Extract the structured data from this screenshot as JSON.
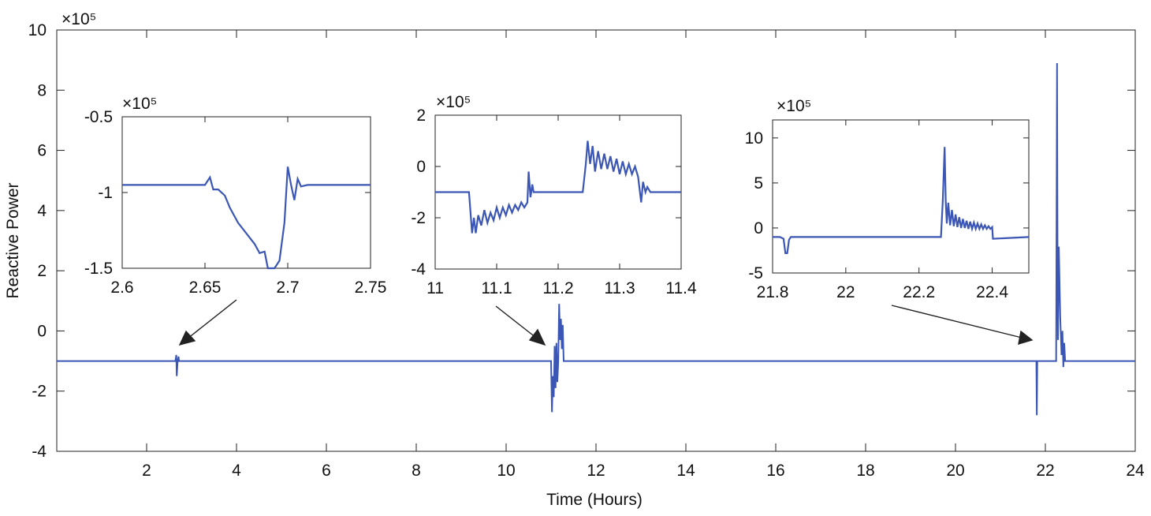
{
  "colors": {
    "line": "#3b56b4",
    "axis": "#222222",
    "arrow": "#222222",
    "background": "#ffffff"
  },
  "chart_data": [
    {
      "id": "main",
      "type": "line",
      "title": "",
      "xlabel": "Time (Hours)",
      "ylabel": "Reactive Power",
      "exponent": "×10⁵",
      "xlim": [
        0,
        24
      ],
      "ylim": [
        -4,
        10
      ],
      "xticks": [
        2,
        4,
        6,
        8,
        10,
        12,
        14,
        16,
        18,
        20,
        22,
        24
      ],
      "yticks": [
        -4,
        -2,
        0,
        2,
        4,
        6,
        8,
        10
      ],
      "series": [
        {
          "name": "Reactive power",
          "x": [
            0,
            2.64,
            2.66,
            2.67,
            2.69,
            2.71,
            2.72,
            2.74,
            10.97,
            11.0,
            11.02,
            11.04,
            11.06,
            11.08,
            11.1,
            11.12,
            11.14,
            11.16,
            11.18,
            11.2,
            11.22,
            11.24,
            11.26,
            11.28,
            11.3,
            11.32,
            11.34,
            11.37,
            21.78,
            21.8,
            21.81,
            21.82,
            21.84,
            21.86,
            22.2,
            22.24,
            22.26,
            22.27,
            22.28,
            22.3,
            22.33,
            22.36,
            22.38,
            22.4,
            22.42,
            22.44,
            22.46,
            24
          ],
          "y": [
            -1.0,
            -1.0,
            -0.8,
            -1.5,
            -1.0,
            -0.85,
            -1.0,
            -1.0,
            -1.0,
            -1.0,
            -2.7,
            -1.5,
            -2.2,
            -0.5,
            -1.9,
            -0.4,
            -1.7,
            -1.0,
            0.9,
            -0.3,
            0.4,
            -0.6,
            0.2,
            -1.0,
            -1.0,
            -1.0,
            -1.0,
            -1.0,
            -1.0,
            -1.0,
            -2.8,
            -1.0,
            -1.0,
            -1.0,
            -1.0,
            -1.0,
            8.9,
            3.0,
            -0.3,
            2.8,
            0.5,
            -0.8,
            0.0,
            -1.2,
            -0.4,
            -1.0,
            -1.0,
            -1.0
          ]
        }
      ]
    },
    {
      "id": "inset-1",
      "type": "line",
      "exponent": "×10⁵",
      "xlim": [
        2.6,
        2.75
      ],
      "ylim": [
        -1.5,
        -0.5
      ],
      "xticks": [
        2.6,
        2.65,
        2.7,
        2.75
      ],
      "yticks": [
        -1.5,
        -1,
        -0.5
      ],
      "series": [
        {
          "name": "Reactive power",
          "x": [
            2.6,
            2.65,
            2.653,
            2.655,
            2.658,
            2.662,
            2.665,
            2.67,
            2.675,
            2.68,
            2.683,
            2.686,
            2.688,
            2.692,
            2.695,
            2.698,
            2.7,
            2.702,
            2.704,
            2.706,
            2.708,
            2.712,
            2.75
          ],
          "y": [
            -0.95,
            -0.95,
            -0.9,
            -0.98,
            -0.98,
            -1.02,
            -1.1,
            -1.2,
            -1.27,
            -1.34,
            -1.4,
            -1.39,
            -1.5,
            -1.5,
            -1.45,
            -1.2,
            -0.83,
            -0.95,
            -1.05,
            -0.91,
            -0.96,
            -0.95,
            -0.95
          ]
        }
      ]
    },
    {
      "id": "inset-2",
      "type": "line",
      "exponent": "×10⁵",
      "xlim": [
        11,
        11.4
      ],
      "ylim": [
        -4,
        2
      ],
      "xticks": [
        11,
        11.1,
        11.2,
        11.3,
        11.4
      ],
      "yticks": [
        -4,
        -2,
        0,
        2
      ],
      "series": [
        {
          "name": "Reactive power",
          "x": [
            11.0,
            11.055,
            11.06,
            11.063,
            11.066,
            11.07,
            11.075,
            11.08,
            11.085,
            11.09,
            11.095,
            11.1,
            11.105,
            11.11,
            11.115,
            11.12,
            11.125,
            11.13,
            11.135,
            11.14,
            11.145,
            11.15,
            11.152,
            11.155,
            11.158,
            11.16,
            11.24,
            11.245,
            11.248,
            11.252,
            11.256,
            11.26,
            11.265,
            11.27,
            11.275,
            11.28,
            11.285,
            11.29,
            11.295,
            11.3,
            11.305,
            11.31,
            11.315,
            11.32,
            11.325,
            11.33,
            11.335,
            11.338,
            11.342,
            11.345,
            11.35,
            11.4
          ],
          "y": [
            -1.0,
            -1.0,
            -2.6,
            -2.0,
            -2.6,
            -1.9,
            -2.3,
            -1.7,
            -2.2,
            -1.8,
            -2.1,
            -1.6,
            -2.0,
            -1.6,
            -1.9,
            -1.5,
            -1.8,
            -1.5,
            -1.7,
            -1.4,
            -1.6,
            -1.4,
            -0.2,
            -1.2,
            -0.7,
            -1.0,
            -1.0,
            0.1,
            1.0,
            0.1,
            0.8,
            -0.2,
            0.6,
            -0.1,
            0.5,
            -0.1,
            0.4,
            -0.2,
            0.3,
            -0.3,
            0.2,
            -0.3,
            0.1,
            -0.3,
            0.0,
            -0.4,
            -1.4,
            -0.6,
            -1.0,
            -0.8,
            -1.0,
            -1.0
          ]
        }
      ]
    },
    {
      "id": "inset-3",
      "type": "line",
      "exponent": "×10⁵",
      "xlim": [
        21.8,
        22.5
      ],
      "ylim": [
        -5,
        12
      ],
      "xticks": [
        21.8,
        22,
        22.2,
        22.4
      ],
      "yticks": [
        -5,
        0,
        5,
        10
      ],
      "series": [
        {
          "name": "Reactive power",
          "x": [
            21.8,
            21.82,
            21.83,
            21.835,
            21.84,
            21.845,
            21.85,
            21.86,
            22.26,
            22.265,
            22.27,
            22.273,
            22.276,
            22.28,
            22.285,
            22.29,
            22.295,
            22.3,
            22.305,
            22.31,
            22.315,
            22.32,
            22.325,
            22.33,
            22.335,
            22.34,
            22.345,
            22.35,
            22.355,
            22.36,
            22.365,
            22.37,
            22.375,
            22.38,
            22.385,
            22.39,
            22.395,
            22.4,
            22.402,
            22.5
          ],
          "y": [
            -1.0,
            -1.0,
            -1.2,
            -2.8,
            -2.8,
            -1.3,
            -1.0,
            -1.0,
            -1.0,
            3.0,
            9.0,
            3.0,
            0.5,
            2.8,
            0.3,
            2.0,
            0.2,
            1.5,
            0.1,
            1.2,
            0.0,
            1.0,
            0.0,
            0.8,
            -0.1,
            0.7,
            -0.1,
            0.6,
            -0.1,
            0.5,
            -0.1,
            0.4,
            -0.1,
            0.3,
            -0.1,
            0.2,
            -0.1,
            0.1,
            -1.2,
            -1.0
          ]
        }
      ]
    }
  ]
}
